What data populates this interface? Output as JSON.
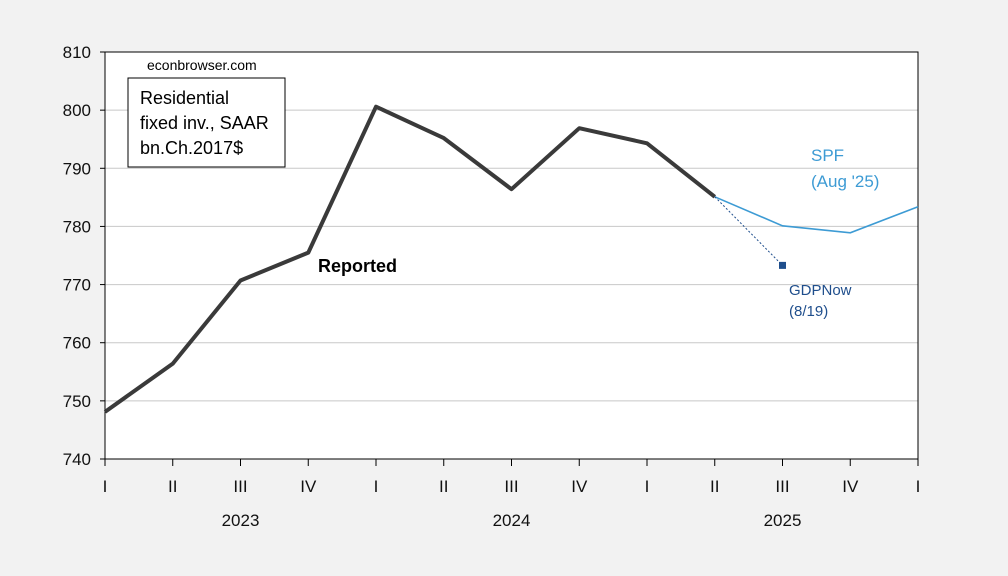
{
  "chart_data": {
    "type": "line",
    "source_note": "econbrowser.com",
    "title_lines": [
      "Residential",
      "fixed inv., SAAR",
      "bn.Ch.2017$"
    ],
    "ylim": [
      740,
      810
    ],
    "yticks": [
      740,
      750,
      760,
      770,
      780,
      790,
      800,
      810
    ],
    "grid": "horizontal",
    "x_quarter_labels": [
      "I",
      "II",
      "III",
      "IV",
      "I",
      "II",
      "III",
      "IV",
      "I",
      "II",
      "III",
      "IV",
      "I"
    ],
    "years": [
      {
        "label": "2023",
        "center_index": 2
      },
      {
        "label": "2024",
        "center_index": 6
      },
      {
        "label": "2025",
        "center_index": 10
      }
    ],
    "series": [
      {
        "name": "Reported",
        "color": "#3a3a3a",
        "x_index": [
          0,
          1,
          2,
          3,
          4,
          5,
          6,
          7,
          8,
          9
        ],
        "values": [
          748.1,
          756.4,
          770.7,
          775.5,
          800.6,
          795.2,
          786.4,
          796.9,
          794.3,
          785.1
        ]
      },
      {
        "name": "SPF",
        "label_lines": [
          "SPF",
          "(Aug '25)"
        ],
        "color": "#3d9bd4",
        "x_index": [
          9,
          10,
          11,
          12
        ],
        "values": [
          785.1,
          780.1,
          778.9,
          783.4
        ]
      },
      {
        "name": "GDPNow",
        "label_lines": [
          "GDPNow",
          "(8/19)"
        ],
        "color": "#1f4e8c",
        "x_index": [
          9,
          10
        ],
        "values": [
          785.1,
          773.3
        ]
      }
    ]
  }
}
